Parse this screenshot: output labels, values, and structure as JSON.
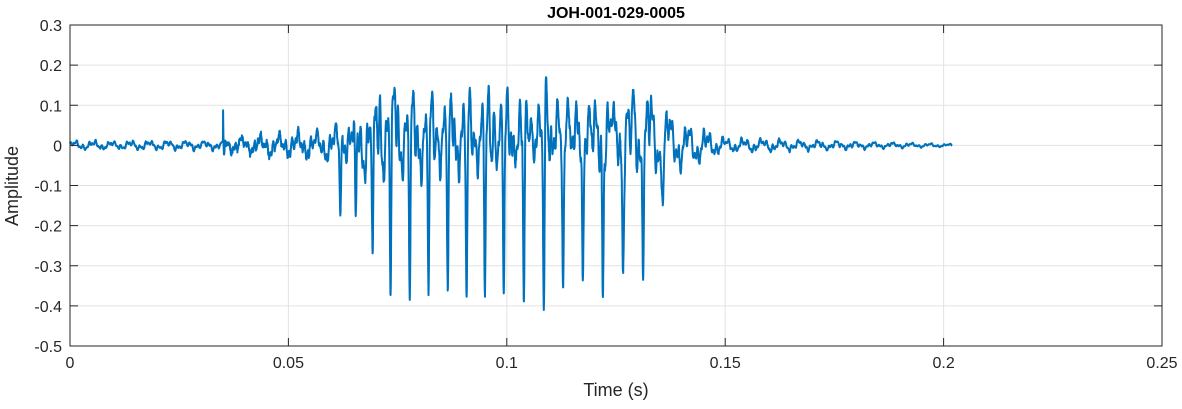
{
  "chart_data": {
    "type": "line",
    "title": "JOH-001-029-0005",
    "xlabel": "Time (s)",
    "ylabel": "Amplitude",
    "xlim": [
      0,
      0.25
    ],
    "ylim": [
      -0.5,
      0.3
    ],
    "xticks": [
      "0",
      "0.05",
      "0.1",
      "0.15",
      "0.2",
      "0.25"
    ],
    "xtick_values": [
      0,
      0.05,
      0.1,
      0.15,
      0.2,
      0.25
    ],
    "yticks": [
      "0.3",
      "0.2",
      "0.1",
      "0",
      "-0.1",
      "-0.2",
      "-0.3",
      "-0.4",
      "-0.5"
    ],
    "ytick_values": [
      0.3,
      0.2,
      0.1,
      0,
      -0.1,
      -0.2,
      -0.3,
      -0.4,
      -0.5
    ],
    "grid": true,
    "line_color": "#0072BD",
    "signal_end_time": 0.202,
    "onset_transient": {
      "t": 0.035,
      "max": 0.095,
      "min": -0.08
    },
    "negative_peaks": [
      {
        "t": 0.0619,
        "v": -0.135
      },
      {
        "t": 0.0654,
        "v": -0.21
      },
      {
        "t": 0.0693,
        "v": -0.335
      },
      {
        "t": 0.0734,
        "v": -0.395
      },
      {
        "t": 0.0778,
        "v": -0.415
      },
      {
        "t": 0.0821,
        "v": -0.39
      },
      {
        "t": 0.0865,
        "v": -0.415
      },
      {
        "t": 0.0908,
        "v": -0.425
      },
      {
        "t": 0.095,
        "v": -0.4
      },
      {
        "t": 0.0993,
        "v": -0.405
      },
      {
        "t": 0.1039,
        "v": -0.395
      },
      {
        "t": 0.1085,
        "v": -0.43
      },
      {
        "t": 0.1129,
        "v": -0.385
      },
      {
        "t": 0.1174,
        "v": -0.36
      },
      {
        "t": 0.122,
        "v": -0.335
      },
      {
        "t": 0.1266,
        "v": -0.27
      },
      {
        "t": 0.1312,
        "v": -0.22
      },
      {
        "t": 0.1358,
        "v": -0.12
      }
    ],
    "positive_peaks": [
      {
        "t": 0.071,
        "v": 0.185
      },
      {
        "t": 0.075,
        "v": 0.175
      },
      {
        "t": 0.0795,
        "v": 0.13
      },
      {
        "t": 0.084,
        "v": 0.15
      },
      {
        "t": 0.088,
        "v": 0.14
      },
      {
        "t": 0.0925,
        "v": 0.14
      },
      {
        "t": 0.097,
        "v": 0.185
      },
      {
        "t": 0.101,
        "v": 0.155
      },
      {
        "t": 0.1055,
        "v": 0.19
      },
      {
        "t": 0.109,
        "v": 0.225
      },
      {
        "t": 0.114,
        "v": 0.19
      },
      {
        "t": 0.119,
        "v": 0.13
      },
      {
        "t": 0.124,
        "v": 0.13
      },
      {
        "t": 0.129,
        "v": 0.13
      },
      {
        "t": 0.133,
        "v": 0.1
      },
      {
        "t": 0.14,
        "v": 0.05
      }
    ]
  }
}
